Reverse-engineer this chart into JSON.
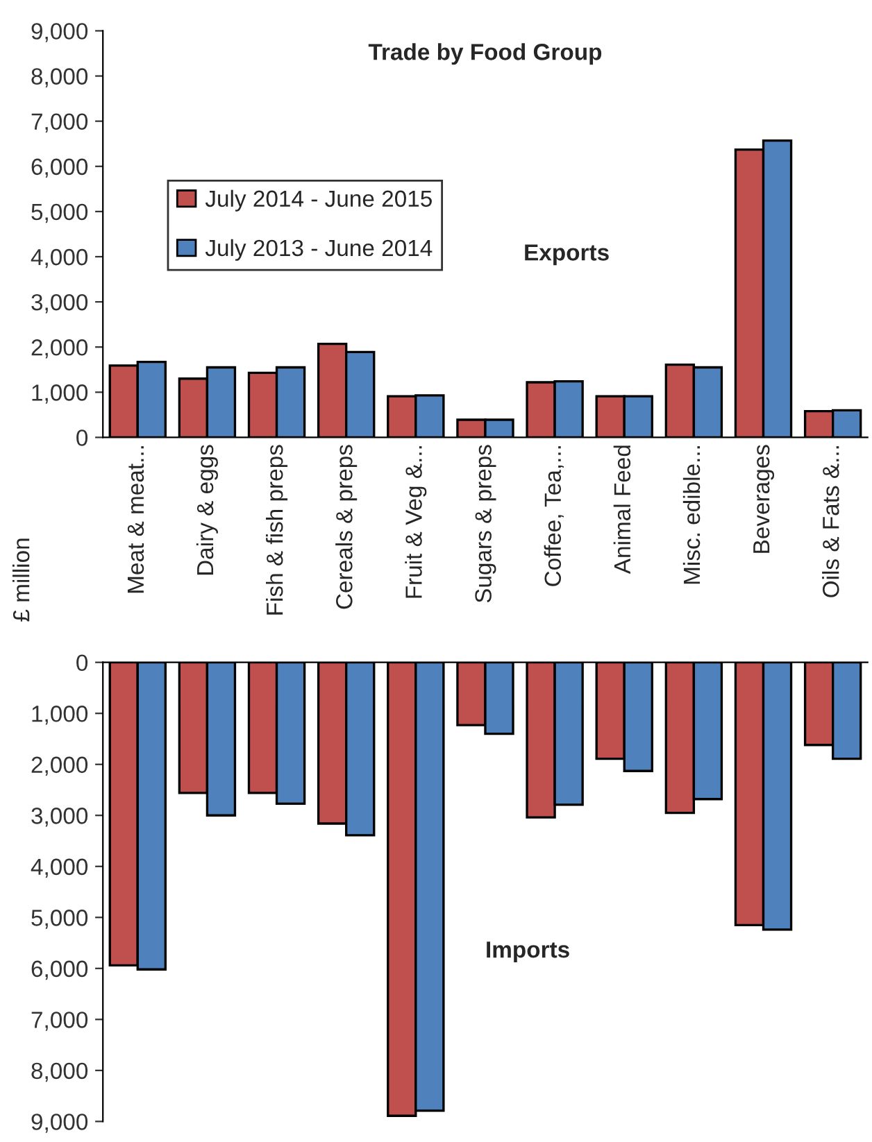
{
  "chart_data": [
    {
      "type": "bar",
      "title": "Trade by Food Group",
      "ylabel": "£ million",
      "annotations": [
        "Exports"
      ],
      "categories": [
        "Meat & meat...",
        "Dairy & eggs",
        "Fish & fish preps",
        "Cereals & preps",
        "Fruit & Veg &...",
        "Sugars & preps",
        "Coffee, Tea,...",
        "Animal Feed",
        "Misc. edible...",
        "Beverages",
        "Oils & Fats &..."
      ],
      "series": [
        {
          "name": "July 2014 - June 2015",
          "color": "#c0504d",
          "values": [
            1590,
            1300,
            1430,
            2070,
            910,
            390,
            1220,
            910,
            1610,
            6370,
            580
          ]
        },
        {
          "name": "July 2013 - June 2014",
          "color": "#4f81bd",
          "values": [
            1670,
            1550,
            1550,
            1890,
            930,
            390,
            1240,
            910,
            1550,
            6570,
            600
          ]
        }
      ],
      "ylim": [
        0,
        9000
      ],
      "yticks": [
        {
          "value": 0,
          "label": "0"
        },
        {
          "value": 1000,
          "label": "1,000"
        },
        {
          "value": 2000,
          "label": "2,000"
        },
        {
          "value": 3000,
          "label": "3,000"
        },
        {
          "value": 4000,
          "label": "4,000"
        },
        {
          "value": 5000,
          "label": "5,000"
        },
        {
          "value": 6000,
          "label": "6,000"
        },
        {
          "value": 7000,
          "label": "7,000"
        },
        {
          "value": 8000,
          "label": "8,000"
        },
        {
          "value": 9000,
          "label": "9,000"
        }
      ],
      "legend": "left",
      "grid": false
    },
    {
      "type": "bar",
      "annotations": [
        "Imports"
      ],
      "categories": [
        null,
        null,
        null,
        null,
        null,
        null,
        null,
        null,
        null,
        null,
        null
      ],
      "series": [
        {
          "color": "#c0504d",
          "values": [
            5940,
            2560,
            2560,
            3160,
            8890,
            1230,
            3040,
            1890,
            2950,
            5150,
            1620
          ]
        },
        {
          "color": "#4f81bd",
          "values": [
            6020,
            3000,
            2770,
            3390,
            8790,
            1400,
            2790,
            2130,
            2680,
            5240,
            1890
          ]
        }
      ],
      "ylim": [
        9000,
        0
      ],
      "yticks": [
        {
          "value": 0,
          "label": "0"
        },
        {
          "value": 1000,
          "label": "1,000"
        },
        {
          "value": 2000,
          "label": "2,000"
        },
        {
          "value": 3000,
          "label": "3,000"
        },
        {
          "value": 4000,
          "label": "4,000"
        },
        {
          "value": 5000,
          "label": "5,000"
        },
        {
          "value": 6000,
          "label": "6,000"
        },
        {
          "value": 7000,
          "label": "7,000"
        },
        {
          "value": 8000,
          "label": "8,000"
        },
        {
          "value": 9000,
          "label": "9,000"
        }
      ],
      "tick_labels": "y",
      "legend": false,
      "grid": false
    }
  ]
}
